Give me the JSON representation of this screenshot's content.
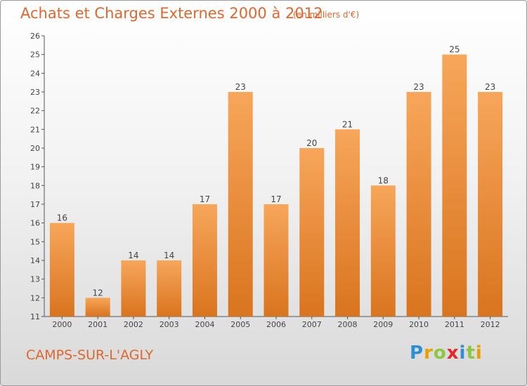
{
  "chart_data": {
    "type": "bar",
    "title": "Achats et Charges Externes 2000 à 2012",
    "subtitle": "(en milliers d'€)",
    "categories": [
      "2000",
      "2001",
      "2002",
      "2003",
      "2004",
      "2005",
      "2006",
      "2007",
      "2008",
      "2009",
      "2010",
      "2011",
      "2012"
    ],
    "values": [
      16,
      12,
      14,
      14,
      17,
      23,
      17,
      20,
      21,
      18,
      23,
      25,
      23
    ],
    "xlabel": "",
    "ylabel": "",
    "ylim": [
      11,
      26
    ],
    "yticks": [
      11,
      12,
      13,
      14,
      15,
      16,
      17,
      18,
      19,
      20,
      21,
      22,
      23,
      24,
      25,
      26
    ],
    "grid": false,
    "bar_color_light": "#f7a65a",
    "bar_color_dark": "#d9741f",
    "data_labels": true
  },
  "footer": {
    "commune": "CAMPS-SUR-L'AGLY",
    "logo_letters": [
      {
        "ch": "P",
        "color": "#2e8fd6"
      },
      {
        "ch": "r",
        "color": "#e5a100"
      },
      {
        "ch": "o",
        "color": "#8dc63f"
      },
      {
        "ch": "x",
        "color": "#e8252a"
      },
      {
        "ch": "i",
        "color": "#2e8fd6"
      },
      {
        "ch": "t",
        "color": "#8dc63f"
      },
      {
        "ch": "i",
        "color": "#e5a100"
      }
    ]
  },
  "colors": {
    "title": "#e0672c",
    "axis": "#555555",
    "text": "#444444"
  }
}
